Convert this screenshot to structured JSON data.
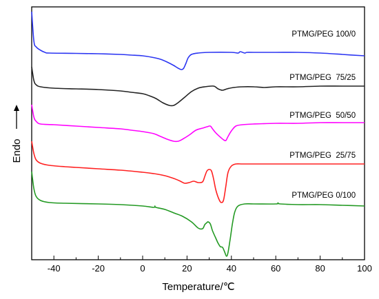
{
  "chart_data": {
    "type": "line",
    "xlabel": "Temperature/℃",
    "ylabel": "Endo",
    "xlim": [
      -50,
      100
    ],
    "xticks": [
      "-40",
      "-20",
      "0",
      "20",
      "40",
      "60",
      "80",
      "100"
    ],
    "ytick_labels": false,
    "grid": false,
    "legend": "inline labels at right of each curve",
    "series": [
      {
        "name": "PTMG/PEG 100/0",
        "color": "#2b35f2",
        "offset": 0,
        "points": [
          [
            -50,
            45
          ],
          [
            -49,
            2
          ],
          [
            -48,
            -6
          ],
          [
            -46,
            -11
          ],
          [
            -44,
            -14
          ],
          [
            -42,
            -15
          ],
          [
            -30,
            -15.5
          ],
          [
            -20,
            -16
          ],
          [
            -10,
            -17
          ],
          [
            -5,
            -18
          ],
          [
            0,
            -19
          ],
          [
            4,
            -21
          ],
          [
            8,
            -24
          ],
          [
            11,
            -28
          ],
          [
            14,
            -33
          ],
          [
            16,
            -37
          ],
          [
            17.5,
            -39
          ],
          [
            18.5,
            -37
          ],
          [
            19.5,
            -30
          ],
          [
            20.5,
            -22
          ],
          [
            22,
            -17
          ],
          [
            25,
            -15
          ],
          [
            30,
            -14
          ],
          [
            40,
            -14
          ],
          [
            43,
            -15
          ],
          [
            44,
            -13
          ],
          [
            46,
            -15
          ],
          [
            47,
            -14
          ],
          [
            50,
            -14
          ],
          [
            60,
            -14
          ],
          [
            70,
            -14
          ],
          [
            80,
            -15
          ],
          [
            90,
            -17
          ],
          [
            100,
            -19
          ]
        ]
      },
      {
        "name": "PTMG/PEG  75/25",
        "color": "#222222",
        "offset": 63,
        "points": [
          [
            -50,
            28
          ],
          [
            -49,
            8
          ],
          [
            -48,
            2
          ],
          [
            -46,
            -1
          ],
          [
            -40,
            -3
          ],
          [
            -30,
            -4
          ],
          [
            -20,
            -5
          ],
          [
            -10,
            -7
          ],
          [
            -5,
            -9
          ],
          [
            0,
            -11
          ],
          [
            3,
            -14
          ],
          [
            6,
            -18
          ],
          [
            9,
            -24
          ],
          [
            12,
            -28
          ],
          [
            14,
            -28
          ],
          [
            16,
            -24
          ],
          [
            19,
            -16
          ],
          [
            22,
            -8
          ],
          [
            25,
            -3
          ],
          [
            28,
            -1
          ],
          [
            32,
            0
          ],
          [
            34,
            -4
          ],
          [
            36,
            -6
          ],
          [
            38,
            -4
          ],
          [
            41,
            -2
          ],
          [
            45,
            -1
          ],
          [
            50,
            -1
          ],
          [
            55,
            -2
          ],
          [
            60,
            -1
          ],
          [
            70,
            -1
          ],
          [
            80,
            0
          ],
          [
            90,
            0
          ],
          [
            100,
            0
          ]
        ]
      },
      {
        "name": "PTMG/PEG  50/50",
        "color": "#ff00ff",
        "offset": 118,
        "points": [
          [
            -50,
            28
          ],
          [
            -49,
            10
          ],
          [
            -48,
            4
          ],
          [
            -46,
            0
          ],
          [
            -40,
            -1
          ],
          [
            -30,
            -3
          ],
          [
            -20,
            -5
          ],
          [
            -10,
            -7
          ],
          [
            -5,
            -9
          ],
          [
            0,
            -11
          ],
          [
            5,
            -14
          ],
          [
            8,
            -18
          ],
          [
            11,
            -22
          ],
          [
            14,
            -25
          ],
          [
            16,
            -25
          ],
          [
            18,
            -22
          ],
          [
            21,
            -16
          ],
          [
            24,
            -9
          ],
          [
            27,
            -6
          ],
          [
            29,
            -4
          ],
          [
            30.5,
            -3
          ],
          [
            31.5,
            -7
          ],
          [
            33,
            -13
          ],
          [
            35,
            -19
          ],
          [
            36.5,
            -23
          ],
          [
            37.5,
            -24
          ],
          [
            38.5,
            -18
          ],
          [
            40,
            -10
          ],
          [
            42,
            -3
          ],
          [
            45,
            -1
          ],
          [
            50,
            0
          ],
          [
            60,
            1
          ],
          [
            70,
            1
          ],
          [
            80,
            2
          ],
          [
            90,
            2
          ],
          [
            100,
            2
          ]
        ]
      },
      {
        "name": "PTMG/PEG  25/75",
        "color": "#ff2020",
        "offset": 176,
        "points": [
          [
            -50,
            33
          ],
          [
            -49,
            15
          ],
          [
            -48,
            6
          ],
          [
            -46,
            1
          ],
          [
            -42,
            -2
          ],
          [
            -35,
            -4
          ],
          [
            -30,
            -5
          ],
          [
            -20,
            -7
          ],
          [
            -10,
            -9
          ],
          [
            0,
            -12
          ],
          [
            5,
            -14
          ],
          [
            10,
            -17
          ],
          [
            14,
            -21
          ],
          [
            17,
            -25
          ],
          [
            19,
            -28
          ],
          [
            21,
            -27
          ],
          [
            23,
            -25
          ],
          [
            25,
            -27
          ],
          [
            27,
            -26
          ],
          [
            28,
            -18
          ],
          [
            29,
            -10
          ],
          [
            30,
            -8
          ],
          [
            31,
            -10
          ],
          [
            32,
            -22
          ],
          [
            33,
            -38
          ],
          [
            34.5,
            -52
          ],
          [
            35.5,
            -56
          ],
          [
            36.5,
            -52
          ],
          [
            37.5,
            -32
          ],
          [
            38.5,
            -12
          ],
          [
            40,
            -3
          ],
          [
            42,
            0
          ],
          [
            45,
            0
          ],
          [
            50,
            0
          ],
          [
            60,
            0
          ],
          [
            70,
            0
          ],
          [
            80,
            0
          ],
          [
            90,
            0
          ],
          [
            100,
            0
          ]
        ]
      },
      {
        "name": "PTMG/PEG 0/100",
        "color": "#229922",
        "offset": 234,
        "points": [
          [
            -50,
            47
          ],
          [
            -49,
            22
          ],
          [
            -48,
            11
          ],
          [
            -46,
            5
          ],
          [
            -42,
            2
          ],
          [
            -35,
            1
          ],
          [
            -20,
            0
          ],
          [
            -10,
            -1
          ],
          [
            0,
            -3
          ],
          [
            5,
            -5
          ],
          [
            5.5,
            -3
          ],
          [
            6,
            -5
          ],
          [
            10,
            -8
          ],
          [
            14,
            -13
          ],
          [
            18,
            -18
          ],
          [
            22,
            -26
          ],
          [
            25,
            -35
          ],
          [
            27,
            -36
          ],
          [
            28,
            -30
          ],
          [
            29,
            -27
          ],
          [
            29.5,
            -26
          ],
          [
            30.5,
            -29
          ],
          [
            31.5,
            -39
          ],
          [
            33,
            -50
          ],
          [
            34,
            -57
          ],
          [
            35,
            -62
          ],
          [
            36,
            -63
          ],
          [
            37,
            -70
          ],
          [
            37.8,
            -76
          ],
          [
            38.5,
            -70
          ],
          [
            39.5,
            -50
          ],
          [
            40.5,
            -28
          ],
          [
            41.5,
            -12
          ],
          [
            43,
            -3
          ],
          [
            46,
            0
          ],
          [
            50,
            0
          ],
          [
            60,
            0
          ],
          [
            61,
            1.5
          ],
          [
            62,
            0
          ],
          [
            70,
            -1
          ],
          [
            80,
            -1
          ],
          [
            90,
            -2
          ],
          [
            100,
            -3
          ]
        ]
      }
    ]
  }
}
